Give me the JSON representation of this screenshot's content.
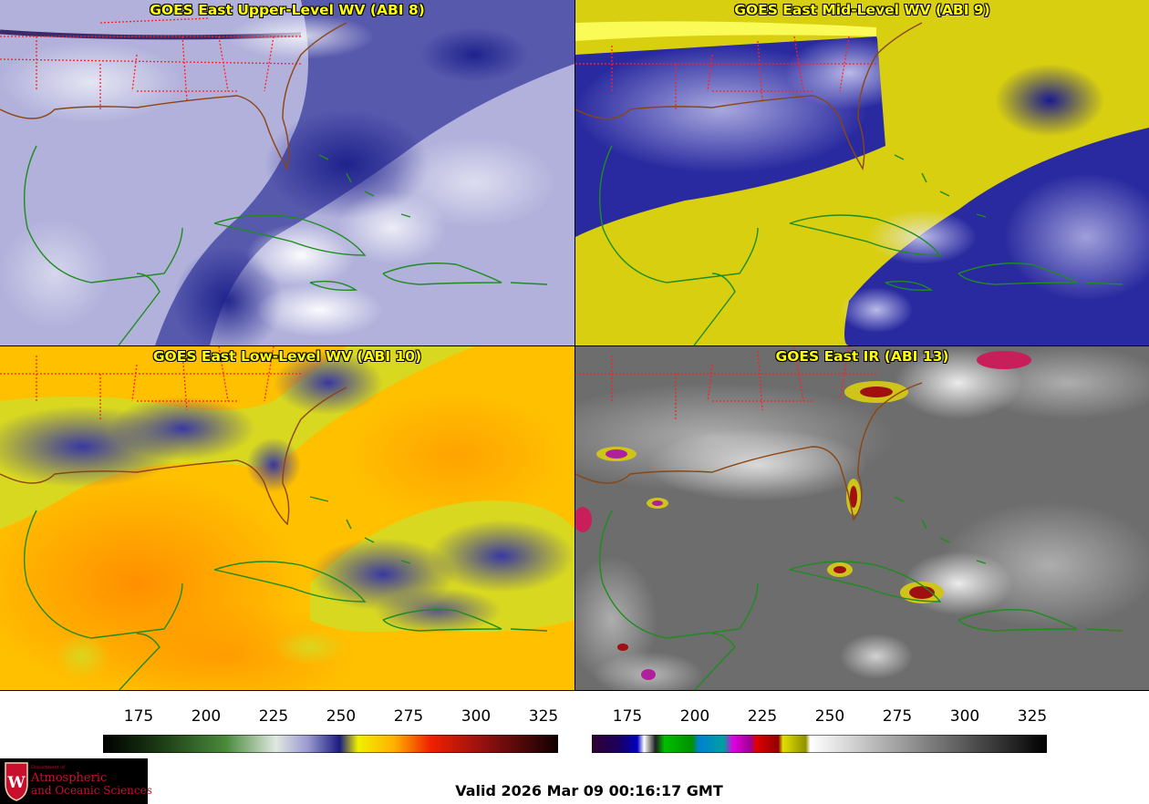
{
  "panels": [
    {
      "title": "GOES East Upper-Level WV (ABI 8)",
      "palette": "wv"
    },
    {
      "title": "GOES East Mid-Level WV (ABI 9)",
      "palette": "wv"
    },
    {
      "title": "GOES East Low-Level WV (ABI 10)",
      "palette": "wv"
    },
    {
      "title": "GOES East IR (ABI 13)",
      "palette": "ir"
    }
  ],
  "colorbars": {
    "wv": {
      "ticks": [
        "175",
        "200",
        "225",
        "250",
        "275",
        "300",
        "325"
      ]
    },
    "ir": {
      "ticks": [
        "175",
        "200",
        "225",
        "250",
        "275",
        "300",
        "325"
      ]
    }
  },
  "logo": {
    "line1": "Department of",
    "line2": "Atmospheric",
    "line3": "and Oceanic Sciences",
    "glyph": "W"
  },
  "valid_time": "Valid 2026 Mar 09 00:16:17 GMT",
  "colors": {
    "title": "#ffff00",
    "coastline": "#1e8c1e",
    "us_coast": "#8b4513",
    "state_border": "#ff2020"
  },
  "icons": {
    "logo": "uw-madison-crest-icon"
  }
}
